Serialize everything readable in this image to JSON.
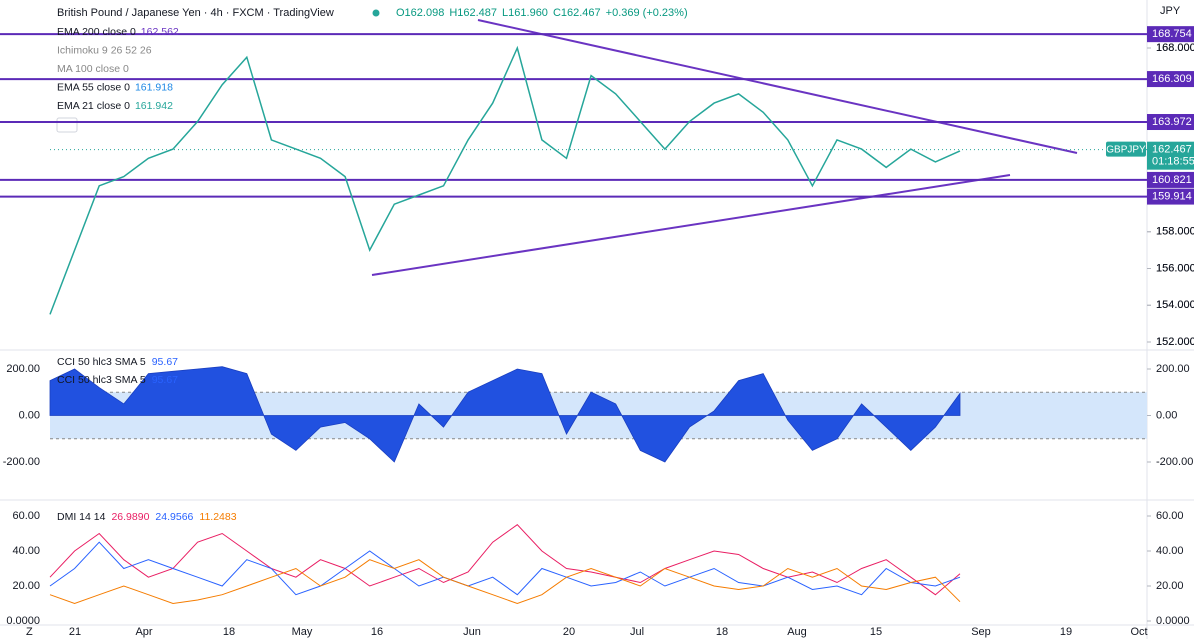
{
  "header": {
    "title": "British Pound / Japanese Yen · 4h · FXCM · TradingView",
    "ohlc": [
      "O162.098",
      "H162.487",
      "L161.960",
      "C162.467",
      "+0.369 (+0.23%)"
    ]
  },
  "indicators": [
    {
      "name": "EMA 200 close 0",
      "value": "162.562"
    },
    {
      "name": "Ichimoku 9 26 52 26"
    },
    {
      "name": "MA 100 close 0"
    },
    {
      "name": "EMA 55 close 0",
      "value": "161.918"
    },
    {
      "name": "EMA 21 close 0",
      "value": "161.942"
    }
  ],
  "currency": "JPY",
  "symbol_tag": {
    "symbol": "GBPJPY",
    "last": {
      "value": 162.467,
      "label": "162.467"
    },
    "countdown": "01:18:55"
  },
  "time_axis": [
    "21",
    "Apr",
    "18",
    "May",
    "16",
    "Jun",
    "20",
    "Jul",
    "18",
    "Aug",
    "15",
    "Sep",
    "19",
    "Oct"
  ],
  "chart_data": [
    {
      "type": "line",
      "name": "price",
      "color": "#26a69a",
      "ylim": [
        151.565,
        170.612
      ],
      "yticks": [
        {
          "value": 168,
          "label": "168.000"
        },
        {
          "value": 158,
          "label": "158.000"
        },
        {
          "value": 156,
          "label": "156.000"
        },
        {
          "value": 154,
          "label": "154.000"
        },
        {
          "value": 152,
          "label": "152.000"
        }
      ],
      "levels": [
        {
          "value": 168.754,
          "label": "168.754"
        },
        {
          "value": 166.309,
          "label": "166.309"
        },
        {
          "value": 163.972,
          "label": "163.972"
        },
        {
          "value": 160.821,
          "label": "160.821"
        },
        {
          "value": 159.914,
          "label": "159.914"
        }
      ],
      "values": [
        153.5,
        157,
        160.5,
        161,
        162,
        162.5,
        164,
        166,
        167.5,
        163,
        162.5,
        162,
        161,
        157,
        159.5,
        160,
        160.5,
        163,
        165,
        168,
        163,
        162,
        166.5,
        165.5,
        164,
        162.5,
        164,
        165,
        165.5,
        164.5,
        163,
        160.5,
        163,
        162.5,
        161.5,
        162.5,
        161.8,
        162.4
      ]
    },
    {
      "type": "area",
      "name": "cci",
      "legend": [
        "CCI 50 hlc3 SMA 5",
        "CCI 50 hlc3 SMA 5"
      ],
      "legend_value": "95.67",
      "color": "#2151e0",
      "band": [
        100,
        -100
      ],
      "ylim": [
        -363.4,
        281.7
      ],
      "yticks": [
        {
          "value": 200,
          "label": "200.00"
        },
        {
          "value": 0,
          "label": "0.00"
        },
        {
          "value": -200,
          "label": "-200.00"
        }
      ],
      "values": [
        150,
        200,
        120,
        50,
        180,
        190,
        200,
        210,
        180,
        -80,
        -150,
        -50,
        -30,
        -100,
        -200,
        50,
        -50,
        100,
        150,
        200,
        180,
        -80,
        100,
        50,
        -150,
        -200,
        -50,
        20,
        150,
        180,
        -20,
        -150,
        -100,
        50,
        -50,
        -150,
        -50,
        95
      ]
    },
    {
      "type": "line",
      "name": "dmi",
      "legend": "DMI 14 14",
      "ylim": [
        -2.29,
        69.14
      ],
      "yticks": [
        {
          "value": 60,
          "label": "60.00"
        },
        {
          "value": 40,
          "label": "40.00"
        },
        {
          "value": 20,
          "label": "20.00"
        },
        {
          "value": 0,
          "label": "0.0000"
        }
      ],
      "series": [
        {
          "name": "26.9890",
          "color": "#e91e63",
          "values": [
            25,
            40,
            50,
            35,
            25,
            30,
            45,
            50,
            40,
            30,
            25,
            35,
            30,
            20,
            25,
            30,
            22,
            28,
            45,
            55,
            40,
            30,
            28,
            25,
            22,
            30,
            35,
            40,
            38,
            30,
            25,
            28,
            22,
            30,
            35,
            25,
            15,
            27
          ]
        },
        {
          "name": "24.9566",
          "color": "#2962ff",
          "values": [
            20,
            30,
            45,
            30,
            35,
            30,
            25,
            20,
            35,
            30,
            15,
            20,
            30,
            40,
            30,
            20,
            25,
            20,
            25,
            15,
            30,
            25,
            20,
            22,
            28,
            20,
            25,
            30,
            22,
            20,
            25,
            18,
            20,
            15,
            30,
            22,
            20,
            25
          ]
        },
        {
          "name": "11.2483",
          "color": "#f57c00",
          "values": [
            15,
            10,
            15,
            20,
            15,
            10,
            12,
            15,
            20,
            25,
            30,
            20,
            25,
            35,
            30,
            35,
            25,
            20,
            15,
            10,
            15,
            25,
            30,
            25,
            20,
            30,
            25,
            20,
            18,
            20,
            30,
            25,
            30,
            20,
            18,
            22,
            25,
            11
          ]
        }
      ]
    }
  ]
}
